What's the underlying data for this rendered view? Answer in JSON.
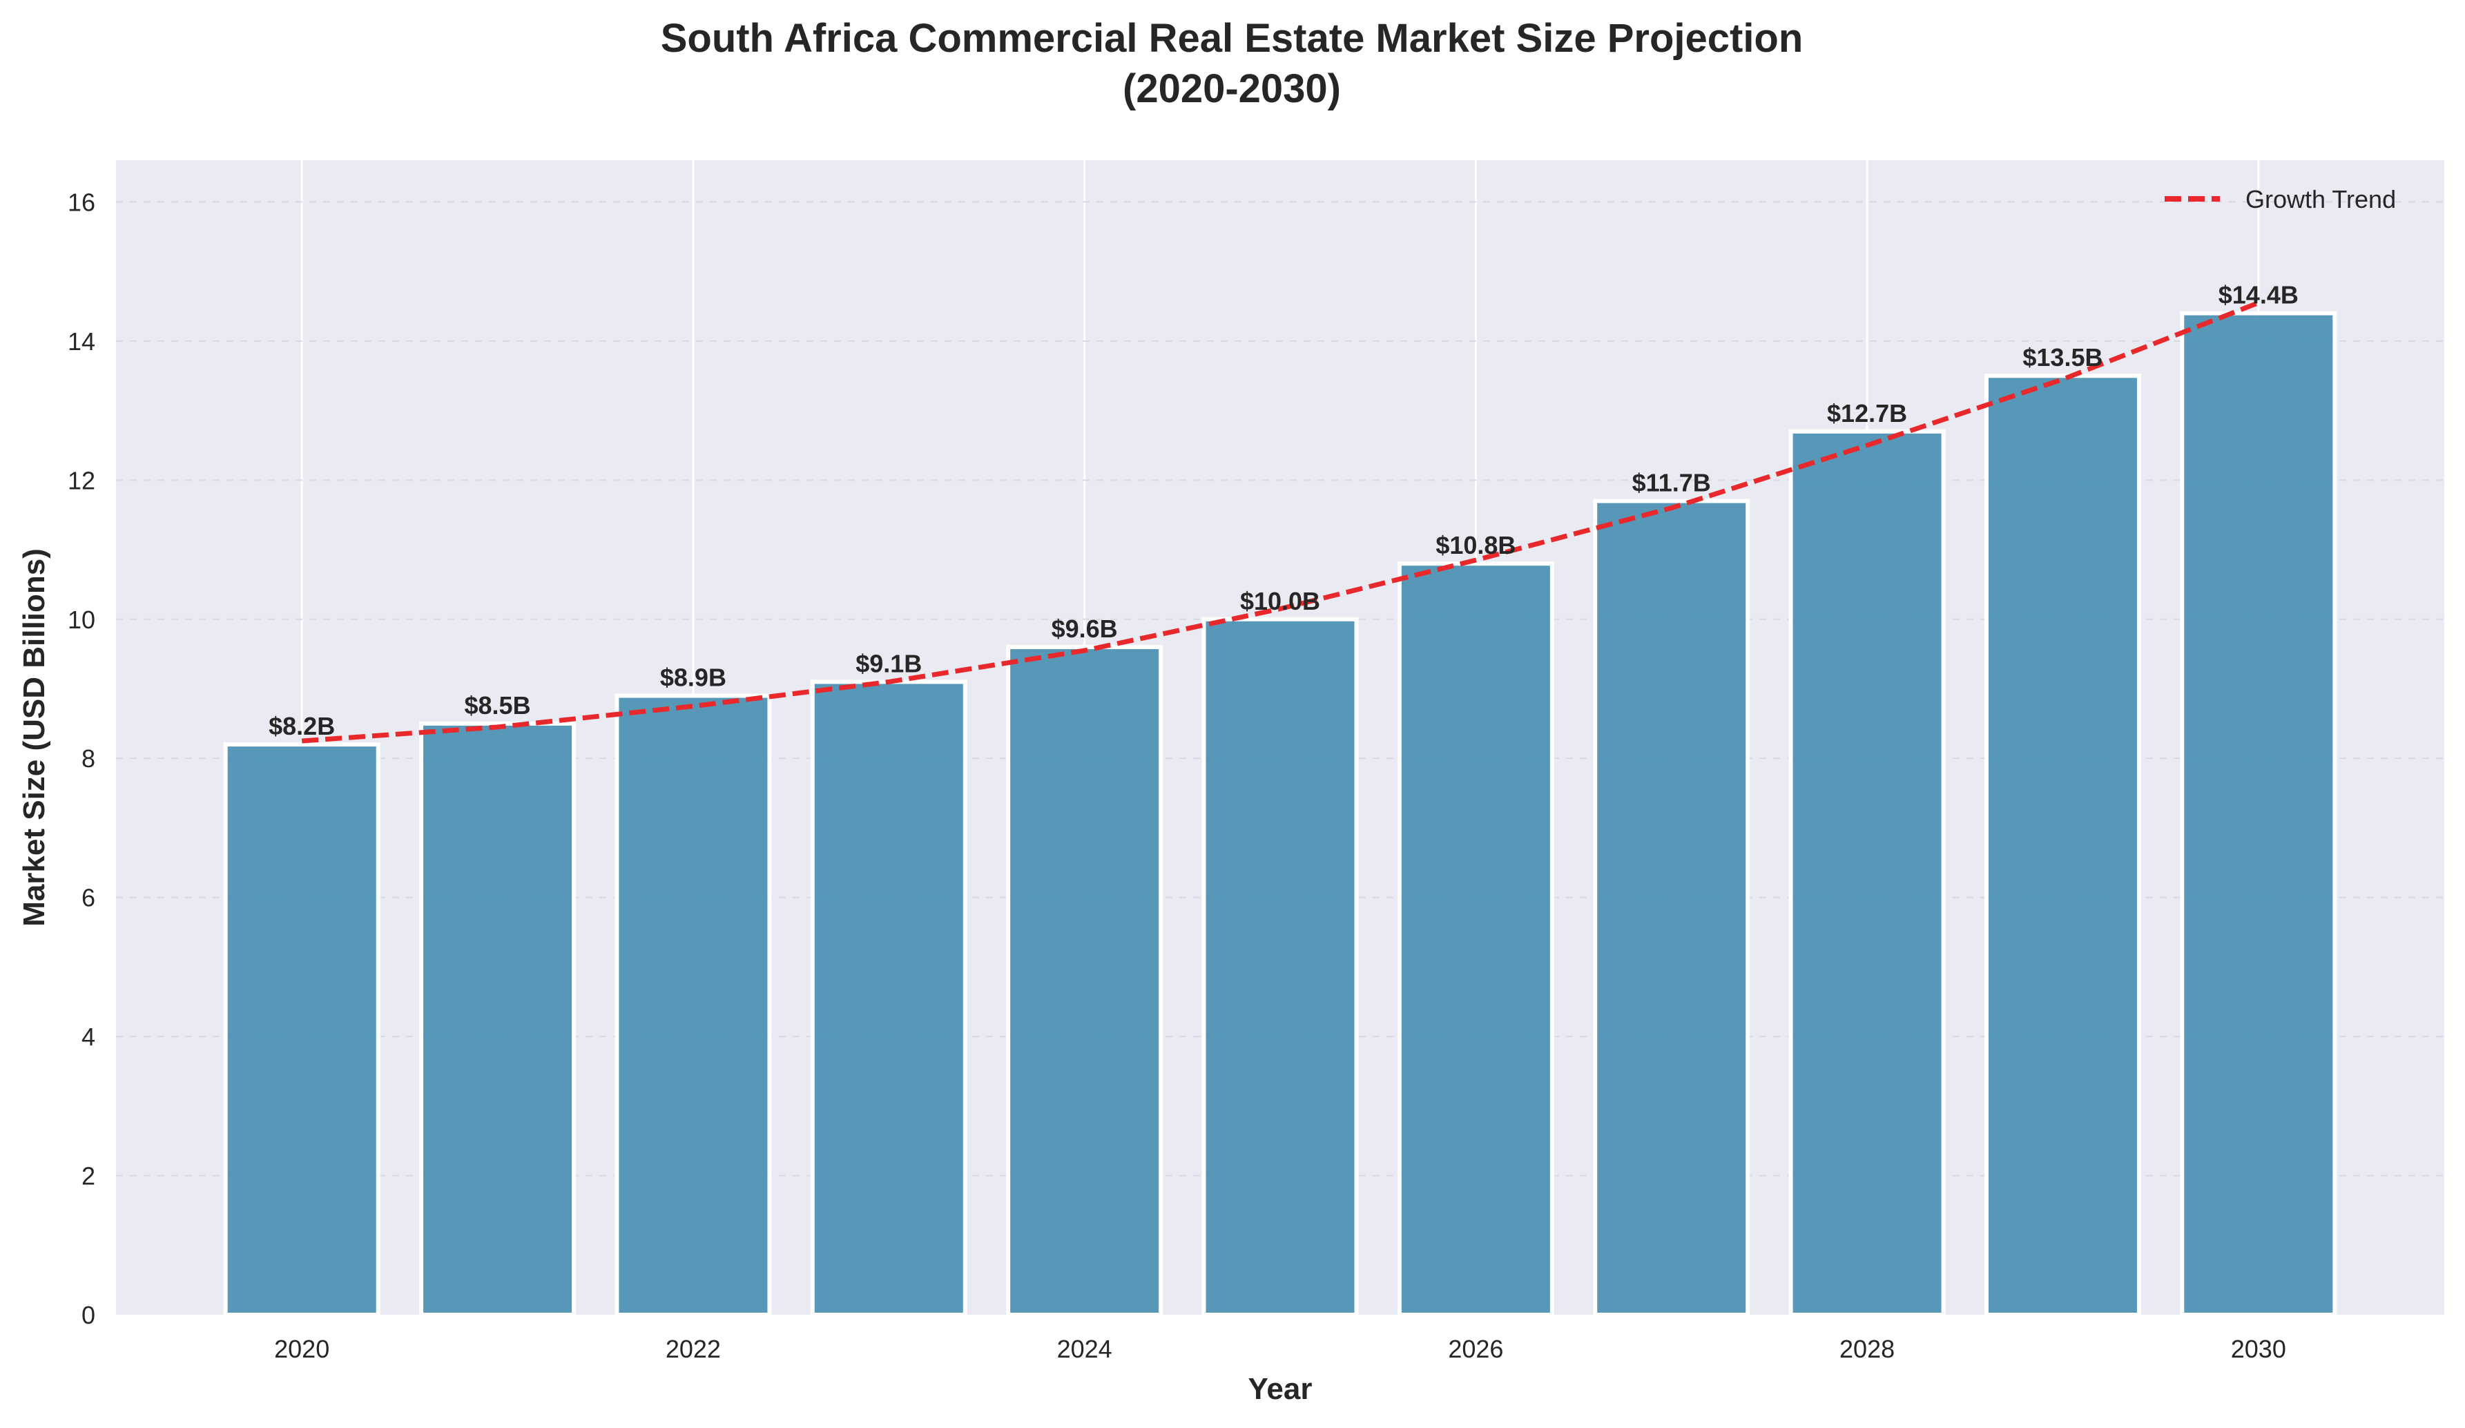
{
  "chart_data": {
    "type": "bar",
    "title_line1": "South Africa Commercial Real Estate Market Size Projection",
    "title_line2": "(2020-2030)",
    "xlabel": "Year",
    "ylabel": "Market Size (USD Billions)",
    "categories": [
      2020,
      2021,
      2022,
      2023,
      2024,
      2025,
      2026,
      2027,
      2028,
      2029,
      2030
    ],
    "values": [
      8.2,
      8.5,
      8.9,
      9.1,
      9.6,
      10.0,
      10.8,
      11.7,
      12.7,
      13.5,
      14.4
    ],
    "value_labels": [
      "$8.2B",
      "$8.5B",
      "$8.9B",
      "$9.1B",
      "$9.6B",
      "$10.0B",
      "$10.8B",
      "$11.7B",
      "$12.7B",
      "$13.5B",
      "$14.4B"
    ],
    "trend": {
      "name": "Growth Trend",
      "style": "dashed",
      "x": [
        2020,
        2021,
        2022,
        2023,
        2024,
        2025,
        2026,
        2027,
        2028,
        2029,
        2030
      ],
      "y": [
        8.25,
        8.45,
        8.75,
        9.1,
        9.55,
        10.15,
        10.85,
        11.6,
        12.5,
        13.45,
        14.55
      ]
    },
    "xticks": [
      2020,
      2022,
      2024,
      2026,
      2028,
      2030
    ],
    "yticks": [
      0,
      2,
      4,
      6,
      8,
      10,
      12,
      14,
      16
    ],
    "xlim": [
      2019.05,
      2030.95
    ],
    "ylim": [
      0,
      16.6
    ],
    "grid": true,
    "legend_position": "top-right",
    "colors": {
      "bar": "#4a90b4",
      "bar_edge": "#ffffff",
      "trend": "#e8282b",
      "plot_bg": "#eaeaf2",
      "grid": "#ffffff"
    }
  }
}
